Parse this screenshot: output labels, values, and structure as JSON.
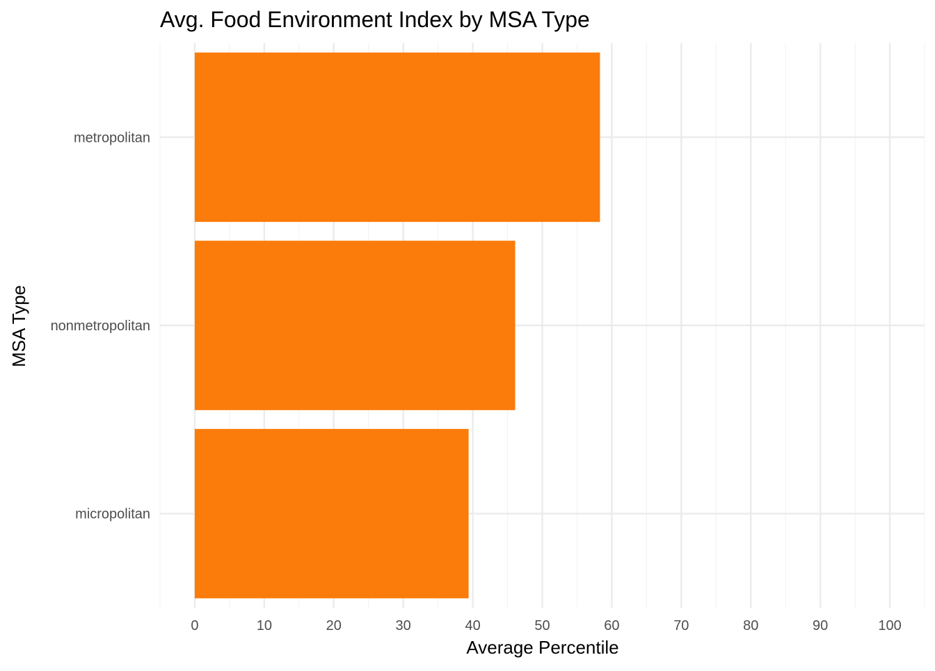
{
  "chart_data": {
    "type": "bar",
    "orientation": "horizontal",
    "title": "Avg. Food Environment Index by MSA Type",
    "xlabel": "Average Percentile",
    "ylabel": "MSA Type",
    "categories": [
      "metropolitan",
      "nonmetropolitan",
      "micropolitan"
    ],
    "values": [
      58.3,
      46.1,
      39.4
    ],
    "xlim": [
      -5,
      105
    ],
    "xticks": [
      0,
      10,
      20,
      30,
      40,
      50,
      60,
      70,
      80,
      90,
      100
    ],
    "xtick_labels": [
      "0",
      "10",
      "20",
      "30",
      "40",
      "50",
      "60",
      "70",
      "80",
      "90",
      "100"
    ],
    "grid": true,
    "legend": "none",
    "colors": {
      "bar": "#fb7b0b",
      "grid_major": "#ebebeb",
      "grid_minor": "#f3f3f3",
      "tick_label": "#4d4d4d",
      "text": "#000000",
      "background": "#ffffff"
    }
  }
}
